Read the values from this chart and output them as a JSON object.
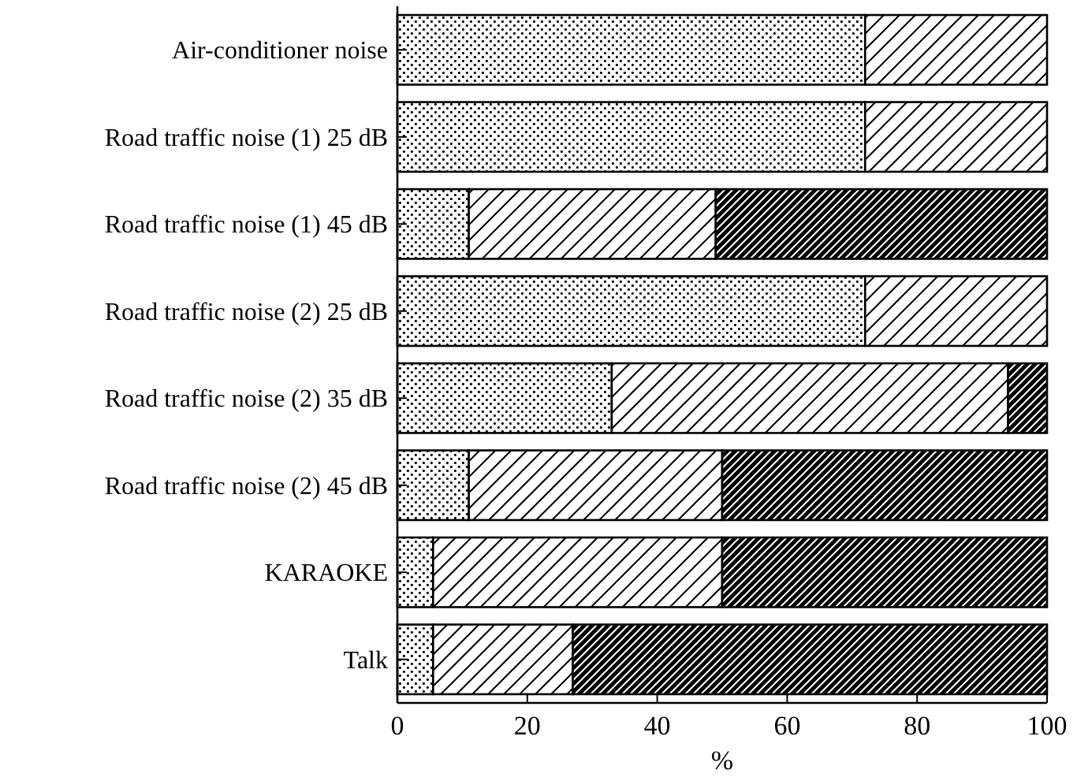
{
  "chart_data": {
    "type": "bar",
    "orientation": "horizontal",
    "stacked": true,
    "xlabel": "%",
    "categories": [
      "Air-conditioner noise",
      "Road traffic noise (1) 25 dB",
      "Road traffic noise (1) 45 dB",
      "Road traffic noise (2) 25 dB",
      "Road traffic noise (2) 35 dB",
      "Road traffic noise (2) 45 dB",
      "KARAOKE",
      "Talk"
    ],
    "series": [
      {
        "color": "#000000",
        "values": [
          72,
          72,
          11,
          72,
          33,
          11,
          5.5,
          5.5
        ]
      },
      {
        "color": "#000000",
        "values": [
          28,
          28,
          38,
          28,
          61,
          39,
          44.5,
          21.5
        ]
      },
      {
        "color": "#000000",
        "values": [
          0,
          0,
          51,
          0,
          6,
          50,
          50,
          73
        ]
      }
    ],
    "xlim": [
      0,
      100
    ],
    "xticks": [
      0,
      20,
      40,
      60,
      80,
      100
    ],
    "grid": false
  }
}
